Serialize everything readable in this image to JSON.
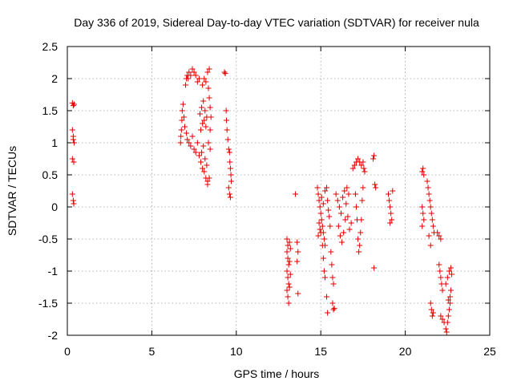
{
  "chart_data": {
    "type": "scatter",
    "title": "Day 336 of 2019, Sidereal Day-to-day VTEC variation (SDTVAR) for receiver nula",
    "xlabel": "GPS time / hours",
    "ylabel": "SDTVAR / TECUs",
    "xlim": [
      0,
      25
    ],
    "ylim": [
      -2,
      2.5
    ],
    "xticks": [
      0,
      5,
      10,
      15,
      20,
      25
    ],
    "xtick_labels": [
      "0",
      "5",
      "10",
      "15",
      "20",
      "25"
    ],
    "yticks": [
      -2,
      -1.5,
      -1,
      -0.5,
      0,
      0.5,
      1,
      1.5,
      2,
      2.5
    ],
    "ytick_labels": [
      "-2",
      "-1.5",
      "-1",
      "-0.5",
      "0",
      "0.5",
      "1",
      "1.5",
      "2",
      "2.5"
    ],
    "grid": true,
    "marker": "plus",
    "color": "#e00000",
    "series": [
      {
        "name": "SDTVAR",
        "points": [
          [
            0.3,
            1.62
          ],
          [
            0.35,
            1.58
          ],
          [
            0.4,
            1.6
          ],
          [
            0.3,
            1.2
          ],
          [
            0.35,
            1.1
          ],
          [
            0.4,
            1.0
          ],
          [
            0.35,
            1.05
          ],
          [
            0.3,
            0.75
          ],
          [
            0.38,
            0.7
          ],
          [
            0.3,
            0.2
          ],
          [
            0.35,
            0.1
          ],
          [
            0.38,
            0.05
          ],
          [
            6.7,
            1.0
          ],
          [
            6.72,
            1.1
          ],
          [
            6.75,
            1.2
          ],
          [
            6.78,
            1.35
          ],
          [
            6.8,
            1.5
          ],
          [
            6.85,
            1.6
          ],
          [
            6.9,
            1.4
          ],
          [
            6.95,
            1.25
          ],
          [
            7.0,
            1.9
          ],
          [
            7.05,
            2.0
          ],
          [
            7.1,
            2.05
          ],
          [
            7.15,
            2.0
          ],
          [
            7.2,
            2.1
          ],
          [
            7.3,
            2.05
          ],
          [
            7.4,
            2.15
          ],
          [
            7.5,
            2.1
          ],
          [
            7.6,
            2.05
          ],
          [
            7.7,
            1.95
          ],
          [
            7.8,
            2.0
          ],
          [
            7.05,
            1.15
          ],
          [
            7.1,
            1.05
          ],
          [
            7.2,
            1.0
          ],
          [
            7.3,
            0.95
          ],
          [
            7.4,
            1.1
          ],
          [
            7.5,
            0.9
          ],
          [
            7.6,
            0.85
          ],
          [
            7.7,
            1.0
          ],
          [
            7.8,
            0.8
          ],
          [
            7.9,
            0.7
          ],
          [
            8.0,
            0.6
          ],
          [
            8.1,
            0.55
          ],
          [
            8.2,
            0.45
          ],
          [
            8.3,
            0.4
          ],
          [
            7.85,
            1.45
          ],
          [
            7.95,
            1.55
          ],
          [
            8.05,
            1.65
          ],
          [
            8.15,
            1.5
          ],
          [
            8.25,
            1.4
          ],
          [
            7.9,
            1.2
          ],
          [
            8.0,
            1.3
          ],
          [
            8.1,
            1.35
          ],
          [
            8.2,
            1.25
          ],
          [
            8.0,
            1.9
          ],
          [
            8.1,
            2.0
          ],
          [
            8.2,
            1.95
          ],
          [
            8.3,
            2.1
          ],
          [
            8.4,
            2.15
          ],
          [
            8.35,
            1.85
          ],
          [
            8.4,
            1.7
          ],
          [
            8.45,
            1.55
          ],
          [
            8.5,
            1.4
          ],
          [
            8.45,
            1.2
          ],
          [
            7.95,
            0.85
          ],
          [
            8.05,
            0.95
          ],
          [
            8.15,
            0.75
          ],
          [
            8.25,
            0.65
          ],
          [
            8.3,
            0.35
          ],
          [
            8.4,
            0.45
          ],
          [
            8.45,
            0.9
          ],
          [
            8.35,
            1.0
          ],
          [
            9.3,
            2.1
          ],
          [
            9.35,
            2.08
          ],
          [
            9.4,
            1.5
          ],
          [
            9.42,
            1.35
          ],
          [
            9.45,
            1.2
          ],
          [
            9.5,
            1.05
          ],
          [
            9.55,
            0.9
          ],
          [
            9.6,
            0.85
          ],
          [
            9.62,
            0.7
          ],
          [
            9.65,
            0.6
          ],
          [
            9.68,
            0.5
          ],
          [
            9.7,
            0.4
          ],
          [
            9.55,
            0.3
          ],
          [
            9.6,
            0.2
          ],
          [
            9.65,
            0.15
          ],
          [
            13.5,
            0.2
          ],
          [
            13.0,
            -0.5
          ],
          [
            13.05,
            -0.6
          ],
          [
            13.0,
            -0.7
          ],
          [
            13.05,
            -0.8
          ],
          [
            13.1,
            -0.9
          ],
          [
            13.0,
            -1.0
          ],
          [
            13.05,
            -1.1
          ],
          [
            13.1,
            -1.2
          ],
          [
            13.0,
            -1.3
          ],
          [
            13.05,
            -1.4
          ],
          [
            13.1,
            -1.5
          ],
          [
            13.15,
            -0.55
          ],
          [
            13.2,
            -0.65
          ],
          [
            13.15,
            -0.85
          ],
          [
            13.2,
            -1.05
          ],
          [
            13.15,
            -1.25
          ],
          [
            13.6,
            -0.55
          ],
          [
            13.65,
            -0.7
          ],
          [
            13.6,
            -0.85
          ],
          [
            13.65,
            -1.35
          ],
          [
            14.8,
            0.3
          ],
          [
            14.85,
            0.2
          ],
          [
            14.9,
            0.1
          ],
          [
            14.95,
            0.0
          ],
          [
            15.0,
            -0.1
          ],
          [
            15.05,
            -0.2
          ],
          [
            15.1,
            -0.3
          ],
          [
            15.15,
            -0.4
          ],
          [
            15.2,
            -0.5
          ],
          [
            15.25,
            -0.6
          ],
          [
            14.9,
            -0.25
          ],
          [
            15.0,
            -0.4
          ],
          [
            15.1,
            -0.6
          ],
          [
            15.15,
            -0.8
          ],
          [
            15.2,
            -1.0
          ],
          [
            15.25,
            -1.1
          ],
          [
            14.85,
            -0.45
          ],
          [
            14.95,
            -0.35
          ],
          [
            15.05,
            0.15
          ],
          [
            15.15,
            0.05
          ],
          [
            15.25,
            0.25
          ],
          [
            15.35,
            0.3
          ],
          [
            15.4,
            0.1
          ],
          [
            15.45,
            -0.05
          ],
          [
            15.5,
            -0.15
          ],
          [
            15.55,
            -0.3
          ],
          [
            15.6,
            -0.7
          ],
          [
            15.65,
            -0.9
          ],
          [
            15.7,
            -1.1
          ],
          [
            15.75,
            -1.2
          ],
          [
            15.7,
            -1.5
          ],
          [
            15.75,
            -1.6
          ],
          [
            15.8,
            -1.58
          ],
          [
            15.35,
            -1.4
          ],
          [
            15.4,
            -1.65
          ],
          [
            15.9,
            0.2
          ],
          [
            16.0,
            0.1
          ],
          [
            16.1,
            0.0
          ],
          [
            16.2,
            -0.1
          ],
          [
            16.3,
            0.15
          ],
          [
            16.4,
            0.25
          ],
          [
            16.5,
            0.05
          ],
          [
            16.6,
            -0.15
          ],
          [
            16.7,
            -0.35
          ],
          [
            16.8,
            -0.25
          ],
          [
            16.05,
            -0.3
          ],
          [
            16.15,
            -0.45
          ],
          [
            16.25,
            -0.55
          ],
          [
            16.35,
            -0.4
          ],
          [
            16.45,
            -0.2
          ],
          [
            16.55,
            0.3
          ],
          [
            16.65,
            0.2
          ],
          [
            16.9,
            0.6
          ],
          [
            17.0,
            0.65
          ],
          [
            17.1,
            0.7
          ],
          [
            17.2,
            0.75
          ],
          [
            17.3,
            0.7
          ],
          [
            17.4,
            0.65
          ],
          [
            17.5,
            0.7
          ],
          [
            17.05,
            0.2
          ],
          [
            17.1,
            0.0
          ],
          [
            17.15,
            -0.2
          ],
          [
            17.2,
            -0.5
          ],
          [
            17.25,
            -0.7
          ],
          [
            17.3,
            -0.6
          ],
          [
            17.35,
            -0.4
          ],
          [
            17.4,
            -0.2
          ],
          [
            17.45,
            0.1
          ],
          [
            17.5,
            0.3
          ],
          [
            17.6,
            0.55
          ],
          [
            17.55,
            0.6
          ],
          [
            18.1,
            0.75
          ],
          [
            18.15,
            0.8
          ],
          [
            18.2,
            0.35
          ],
          [
            18.25,
            0.3
          ],
          [
            18.15,
            -0.95
          ],
          [
            19.0,
            0.2
          ],
          [
            19.05,
            0.1
          ],
          [
            19.1,
            0.0
          ],
          [
            19.15,
            -0.1
          ],
          [
            19.2,
            -0.2
          ],
          [
            19.1,
            -0.25
          ],
          [
            19.25,
            0.25
          ],
          [
            21.0,
            0.55
          ],
          [
            21.05,
            0.6
          ],
          [
            21.1,
            0.5
          ],
          [
            21.0,
            0.0
          ],
          [
            21.05,
            -0.1
          ],
          [
            21.1,
            -0.2
          ],
          [
            21.0,
            -0.3
          ],
          [
            21.3,
            0.4
          ],
          [
            21.35,
            0.3
          ],
          [
            21.4,
            0.2
          ],
          [
            21.45,
            0.1
          ],
          [
            21.5,
            0.0
          ],
          [
            21.55,
            -0.1
          ],
          [
            21.6,
            -0.2
          ],
          [
            21.65,
            -0.3
          ],
          [
            21.7,
            -0.4
          ],
          [
            21.4,
            -0.45
          ],
          [
            21.5,
            -0.6
          ],
          [
            21.5,
            -1.5
          ],
          [
            21.55,
            -1.6
          ],
          [
            21.6,
            -1.7
          ],
          [
            21.65,
            -1.65
          ],
          [
            21.9,
            -0.4
          ],
          [
            22.0,
            -0.45
          ],
          [
            22.1,
            -0.5
          ],
          [
            22.0,
            -0.9
          ],
          [
            22.05,
            -1.0
          ],
          [
            22.1,
            -1.1
          ],
          [
            22.15,
            -1.2
          ],
          [
            22.2,
            -1.3
          ],
          [
            22.1,
            -1.7
          ],
          [
            22.2,
            -1.75
          ],
          [
            22.3,
            -1.8
          ],
          [
            22.4,
            -1.9
          ],
          [
            22.45,
            -1.95
          ],
          [
            22.5,
            -1.8
          ],
          [
            22.55,
            -1.7
          ],
          [
            22.6,
            -1.6
          ],
          [
            22.65,
            -1.5
          ],
          [
            22.4,
            -1.2
          ],
          [
            22.5,
            -1.1
          ],
          [
            22.6,
            -1.0
          ],
          [
            22.7,
            -0.95
          ],
          [
            22.75,
            -1.05
          ],
          [
            22.7,
            -1.3
          ],
          [
            22.65,
            -1.4
          ],
          [
            22.55,
            -1.45
          ]
        ]
      }
    ]
  }
}
